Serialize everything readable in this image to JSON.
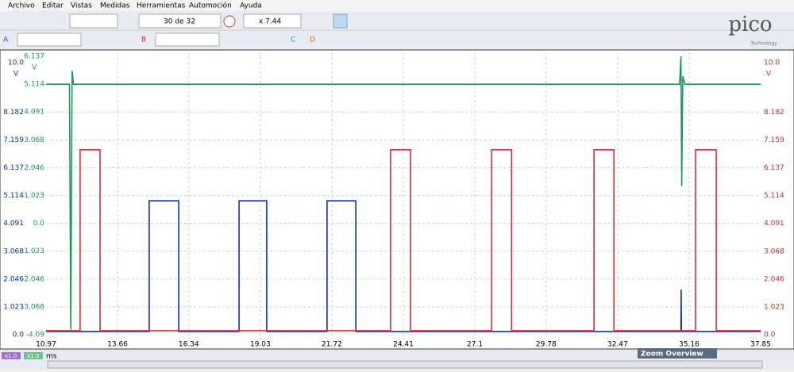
{
  "menu": [
    "Archivo",
    "Editar",
    "Vistas",
    "Medidas",
    "Herramientas",
    "Automoción",
    "Ayuda"
  ],
  "toolbar": {
    "capture": "30 de 32",
    "zoom": "x 7.44"
  },
  "channels": [
    "A",
    "B",
    "C",
    "D"
  ],
  "logo": {
    "brand": "pico",
    "sub": "Technology"
  },
  "bottom": {
    "scale_a": "x1.0",
    "scale_b": "x1.0",
    "unit": "ms",
    "zoom_overview": "Zoom Overview"
  },
  "chart_data": {
    "type": "line",
    "xlim": [
      10.97,
      37.85
    ],
    "xticks": [
      10.97,
      13.66,
      16.34,
      19.03,
      21.72,
      24.41,
      27.1,
      29.78,
      32.47,
      35.16,
      37.85
    ],
    "ylim": [
      0,
      10
    ],
    "yunit": "V",
    "yticks": [
      {
        "value": 0,
        "label": "0.0"
      },
      1.023,
      2.046,
      3.068,
      4.091,
      5.114,
      6.137,
      7.159,
      8.182,
      {
        "value": 10,
        "label": "10.0"
      }
    ],
    "y2lim": [
      -4.09,
      6.137
    ],
    "y2unit": "V",
    "y2ticks": [
      {
        "value": -4.09,
        "label": "-4.09"
      },
      -3.068,
      -2.046,
      -1.023,
      {
        "value": 0,
        "label": "0.0"
      },
      1.023,
      2.046,
      3.068,
      4.091,
      5.114,
      6.137
    ],
    "y3lim": [
      0,
      10
    ],
    "y3unit": "V",
    "y3ticks": [
      {
        "value": 0,
        "label": "0.0"
      },
      1.023,
      2.046,
      3.068,
      4.091,
      5.114,
      6.137,
      7.159,
      8.182,
      {
        "value": 10,
        "label": "10.0"
      }
    ],
    "grid": true,
    "series": [
      {
        "color": "#0f2fbf",
        "axis": "y",
        "x": [
          10.97,
          14.85,
          14.85,
          15.96,
          15.96,
          18.23,
          18.23,
          19.27,
          19.27,
          21.54,
          21.54,
          22.62,
          22.62,
          34.85,
          34.86,
          34.87,
          37.85
        ],
        "values": [
          0.12,
          0.12,
          4.92,
          4.92,
          0.12,
          0.12,
          4.92,
          4.92,
          0.12,
          0.12,
          4.92,
          4.92,
          0.12,
          0.12,
          1.66,
          0.12,
          0.12
        ]
      },
      {
        "color": "#d9303a",
        "axis": "y3",
        "x": [
          10.97,
          12.25,
          12.25,
          13.0,
          13.0,
          23.93,
          23.93,
          24.68,
          24.68,
          27.73,
          27.73,
          28.48,
          28.48,
          31.58,
          31.58,
          32.33,
          32.33,
          35.4,
          35.4,
          36.18,
          36.18,
          37.85
        ],
        "values": [
          0.15,
          0.15,
          6.8,
          6.8,
          0.15,
          0.15,
          6.8,
          6.8,
          0.15,
          0.15,
          6.8,
          6.8,
          0.15,
          0.15,
          6.8,
          6.8,
          0.15,
          0.15,
          6.8,
          6.8,
          0.15,
          0.15
        ]
      },
      {
        "color": "#1a9a5a",
        "axis": "y2",
        "x": [
          10.97,
          11.85,
          11.9,
          11.95,
          12.0,
          34.8,
          34.85,
          34.88,
          34.92,
          35.0,
          37.85
        ],
        "values": [
          5.11,
          5.11,
          -3.9,
          5.6,
          5.11,
          5.11,
          6.137,
          1.37,
          5.4,
          5.11,
          5.11
        ]
      }
    ]
  }
}
